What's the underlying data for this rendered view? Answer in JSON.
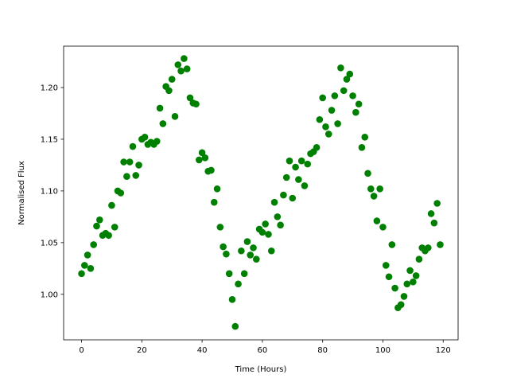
{
  "chart_data": {
    "type": "scatter",
    "x_label": "Time (Hours)",
    "y_label": "Normalised Flux",
    "color": "#008000",
    "x": [
      0,
      1,
      2,
      3,
      4,
      5,
      6,
      7,
      8,
      9,
      10,
      11,
      12,
      13,
      14,
      15,
      16,
      17,
      18,
      19,
      20,
      21,
      22,
      23,
      24,
      25,
      26,
      27,
      28,
      29,
      30,
      31,
      32,
      33,
      34,
      35,
      36,
      37,
      38,
      39,
      40,
      41,
      42,
      43,
      44,
      45,
      46,
      47,
      48,
      49,
      50,
      51,
      52,
      53,
      54,
      55,
      56,
      57,
      58,
      59,
      60,
      61,
      62,
      63,
      64,
      65,
      66,
      67,
      68,
      69,
      70,
      71,
      72,
      73,
      74,
      75,
      76,
      77,
      78,
      79,
      80,
      81,
      82,
      83,
      84,
      85,
      86,
      87,
      88,
      89,
      90,
      91,
      92,
      93,
      94,
      95,
      96,
      97,
      98,
      99,
      100,
      101,
      102,
      103,
      104,
      105,
      106,
      107,
      108,
      109,
      110,
      111,
      112,
      113,
      114,
      115,
      116,
      117,
      118,
      119
    ],
    "values": [
      1.02,
      1.028,
      1.038,
      1.025,
      1.048,
      1.066,
      1.072,
      1.057,
      1.059,
      1.057,
      1.086,
      1.065,
      1.1,
      1.098,
      1.128,
      1.114,
      1.128,
      1.143,
      1.115,
      1.125,
      1.15,
      1.152,
      1.145,
      1.147,
      1.145,
      1.148,
      1.18,
      1.165,
      1.201,
      1.197,
      1.208,
      1.172,
      1.222,
      1.216,
      1.228,
      1.218,
      1.19,
      1.185,
      1.184,
      1.13,
      1.137,
      1.132,
      1.119,
      1.12,
      1.089,
      1.102,
      1.065,
      1.046,
      1.039,
      1.02,
      0.995,
      0.969,
      1.01,
      1.042,
      1.02,
      1.051,
      1.038,
      1.045,
      1.034,
      1.063,
      1.06,
      1.068,
      1.058,
      1.042,
      1.089,
      1.075,
      1.067,
      1.096,
      1.113,
      1.129,
      1.093,
      1.123,
      1.111,
      1.129,
      1.105,
      1.126,
      1.136,
      1.138,
      1.142,
      1.169,
      1.19,
      1.162,
      1.155,
      1.178,
      1.192,
      1.165,
      1.219,
      1.197,
      1.208,
      1.213,
      1.192,
      1.176,
      1.184,
      1.142,
      1.152,
      1.117,
      1.102,
      1.095,
      1.071,
      1.102,
      1.065,
      1.028,
      1.017,
      1.048,
      1.006,
      0.987,
      0.99,
      0.998,
      1.01,
      1.023,
      1.012,
      1.018,
      1.034,
      1.045,
      1.042,
      1.045,
      1.078,
      1.069,
      1.088,
      1.048
    ],
    "xlim": [
      -5.95,
      124.95
    ],
    "ylim": [
      0.956,
      1.24
    ],
    "xticks": [
      0,
      20,
      40,
      60,
      80,
      100,
      120
    ],
    "yticks": [
      {
        "value": 1.0,
        "label": "1.00"
      },
      1.05,
      {
        "value": 1.1,
        "label": "1.10"
      },
      1.15,
      {
        "value": 1.2,
        "label": "1.20"
      }
    ]
  }
}
